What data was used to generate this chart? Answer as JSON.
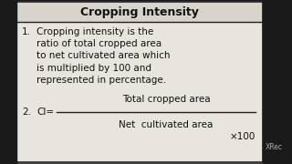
{
  "title": "Cropping Intensity",
  "point1_number": "1.",
  "point1_text": "Cropping intensity is the\nratio of total cropped area\nto net cultivated area which\nis multiplied by 100 and\nrepresented in percentage.",
  "point2_number": "2.",
  "ci_label": "CI=",
  "numerator": "Total cropped area",
  "denominator": "Net  cultivated area",
  "multiplier": "×100",
  "bg_color": "#e8e5de",
  "border_color": "#222222",
  "text_color": "#111111",
  "black_bg": "#1a1a1a",
  "title_bg": "#d8d4cc",
  "watermark": "XRec"
}
